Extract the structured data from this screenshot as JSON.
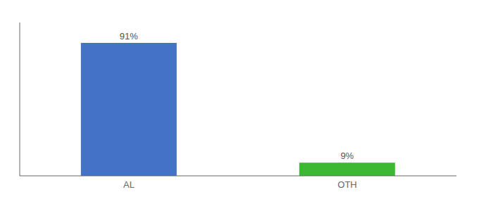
{
  "chart_data": {
    "type": "bar",
    "categories": [
      "AL",
      "OTH"
    ],
    "values": [
      91,
      9
    ],
    "value_labels": [
      "91%",
      "9%"
    ],
    "colors": [
      "#4472c4",
      "#3cb832"
    ],
    "ylim": [
      0,
      105
    ],
    "data_labels": true,
    "tick_labels": "x"
  }
}
